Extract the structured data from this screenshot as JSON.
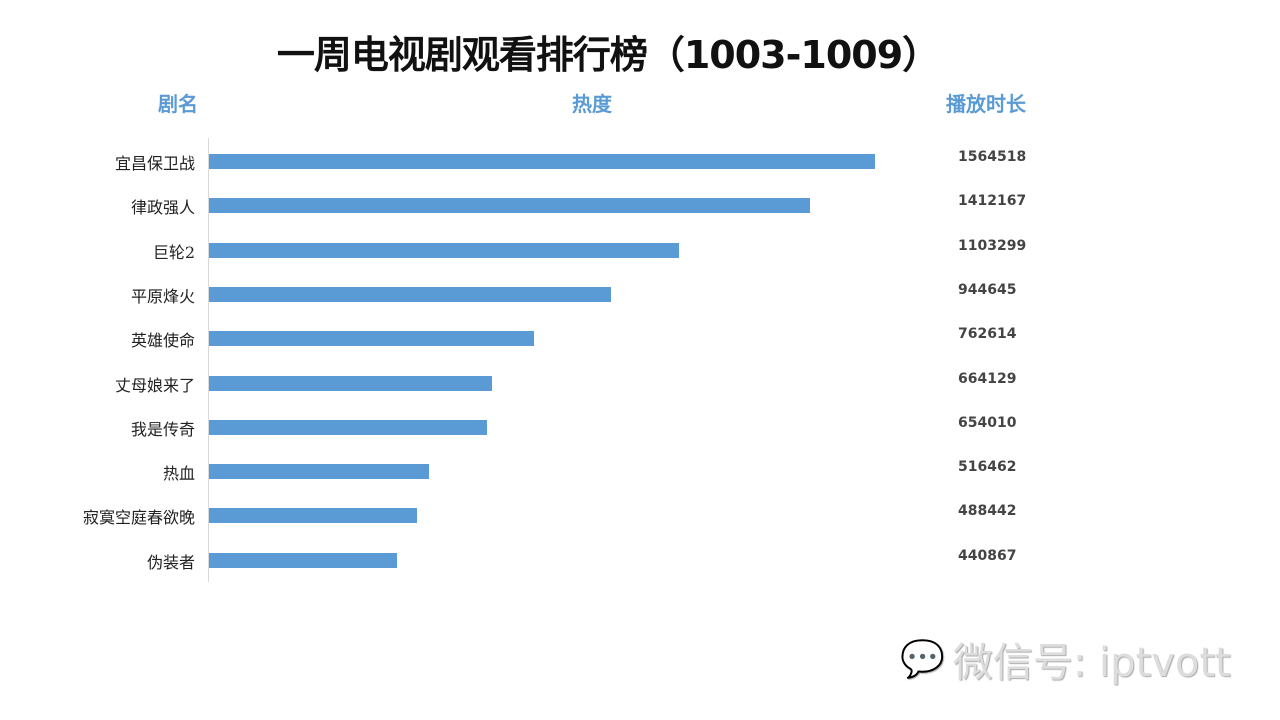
{
  "chart_data": {
    "type": "bar",
    "orientation": "horizontal",
    "title": "一周电视剧观看排行榜（1003-1009）",
    "headers": {
      "name": "剧名",
      "heat": "热度",
      "duration": "播放时长"
    },
    "categories": [
      "宜昌保卫战",
      "律政强人",
      "巨轮2",
      "平原烽火",
      "英雄使命",
      "丈母娘来了",
      "我是传奇",
      "热血",
      "寂寞空庭春欲晚",
      "伪装者"
    ],
    "values": [
      1564518,
      1412167,
      1103299,
      944645,
      762614,
      664129,
      654010,
      516462,
      488442,
      440867
    ],
    "bar_color": "#5b9bd5",
    "xlim": [
      0,
      1564518
    ]
  },
  "watermark": {
    "text": "微信号: iptvott",
    "icon": "wechat-icon"
  }
}
